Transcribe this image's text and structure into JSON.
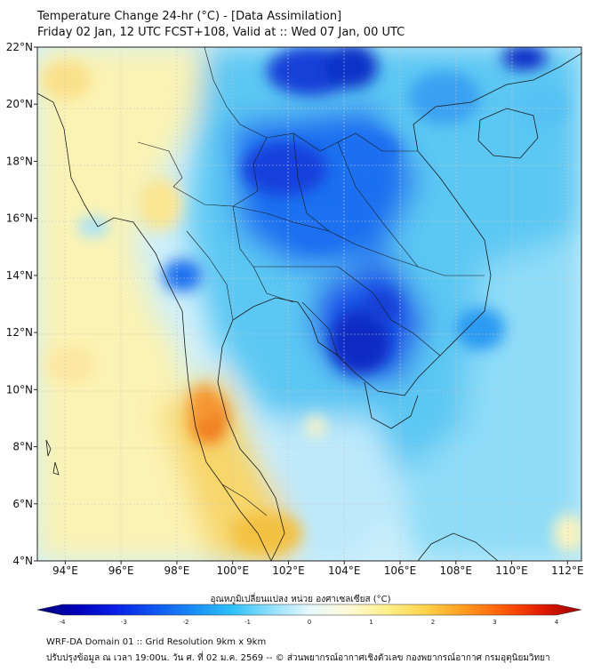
{
  "title": {
    "line1": "Temperature Change 24-hr (°C) - [Data Assimilation]",
    "line2": "Friday 02 Jan, 12 UTC FCST+108, Valid at :: Wed 07 Jan, 00 UTC"
  },
  "map": {
    "lat_ticks": [
      "22°N",
      "20°N",
      "18°N",
      "16°N",
      "14°N",
      "12°N",
      "10°N",
      "8°N",
      "6°N",
      "4°N"
    ],
    "lon_ticks": [
      "94°E",
      "96°E",
      "98°E",
      "100°E",
      "102°E",
      "104°E",
      "106°E",
      "108°E",
      "110°E",
      "112°E"
    ],
    "lat_range": [
      4,
      22
    ],
    "lon_range": [
      93,
      112.5
    ]
  },
  "colorbar": {
    "title": "อุณหภูมิเปลี่ยนแปลง หน่วย องศาเซลเซียส (°C)",
    "ticks": [
      "-4",
      "-3",
      "-2",
      "-1",
      "0",
      "1",
      "2",
      "3",
      "4"
    ],
    "min": -4,
    "max": 4,
    "colors": [
      "#00007a",
      "#0000b8",
      "#0a1fe6",
      "#1055f0",
      "#1a8cf5",
      "#2cc0f8",
      "#8fe0fb",
      "#e6f8fd",
      "#fffad6",
      "#fff08a",
      "#ffd24a",
      "#ff9a1e",
      "#ff5a0a",
      "#e01a00",
      "#9a0000"
    ]
  },
  "footer": {
    "line1": "WRF-DA Domain 01 :: Grid Resolution 9km x 9km",
    "line2": "ปรับปรุงข้อมูล ณ เวลา 19:00น. วัน ศ. ที่ 02 ม.ค. 2569 -- © ส่วนพยากรณ์อากาศเชิงตัวเลข กองพยากรณ์อากาศ กรมอุตุนิยมวิทยา"
  }
}
